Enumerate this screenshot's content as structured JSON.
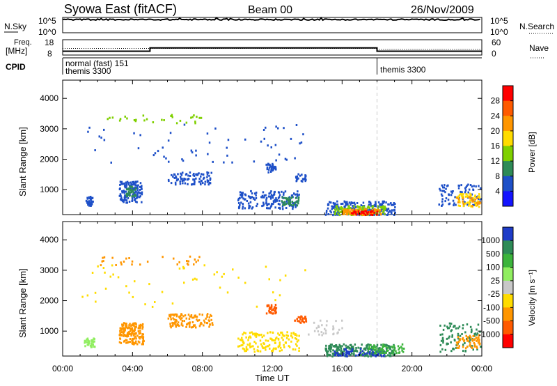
{
  "header": {
    "station": "Syowa East (fitACF)",
    "beam": "Beam 00",
    "date": "26/Nov/2009"
  },
  "top_panels": {
    "nsky_label": "N.Sky",
    "nsky_ticks": [
      "10^5",
      "10^0"
    ],
    "nsearch_label": "N.Search",
    "nsearch_ticks": [
      "10^5",
      "10^0"
    ],
    "freq_label_line1": "Freq.",
    "freq_label_line2": "[MHz]",
    "freq_ticks": [
      "18",
      "8"
    ],
    "nave_label": "Nave",
    "nave_ticks": [
      "60",
      "0"
    ],
    "cpid_label": "CPID",
    "cpid_segments": [
      {
        "line1": "normal (fast) 151",
        "line2": "themis 3300",
        "start_hour": 0
      },
      {
        "line1": "themis 3300",
        "line2": "",
        "start_hour": 18
      }
    ],
    "freq_steps": [
      {
        "from": 0,
        "to": 5,
        "mhz": 10.5
      },
      {
        "from": 5,
        "to": 18,
        "mhz": 12.7
      },
      {
        "from": 18,
        "to": 24,
        "mhz": 10.5
      }
    ],
    "nave_level": 22,
    "nsky_level": 4.3
  },
  "chart_data": [
    {
      "type": "heatmap",
      "panel": "power",
      "ylabel": "Slant Range [km]",
      "xlabel": "Time UT",
      "x_ticks": [
        "00:00",
        "04:00",
        "08:00",
        "12:00",
        "16:00",
        "20:00",
        "00:00"
      ],
      "y_ticks": [
        1000,
        2000,
        3000,
        4000
      ],
      "xlim": [
        0,
        24
      ],
      "ylim": [
        180,
        4600
      ],
      "colorbar_label": "Power [dB]",
      "colorbar_ticks": [
        "28",
        "24",
        "20",
        "16",
        "12",
        "8",
        "4"
      ],
      "colorbar_colors": [
        "#ff0000",
        "#ff5a00",
        "#ff9600",
        "#ffdc00",
        "#7fd000",
        "#2e8b57",
        "#1e50c8",
        "#1414ff"
      ],
      "marker_hour": 18,
      "blobs": [
        {
          "t": [
            1.3,
            1.7
          ],
          "r": [
            500,
            800
          ],
          "c": "#1e50c8",
          "n": 40
        },
        {
          "t": [
            3.2,
            4.5
          ],
          "r": [
            600,
            1300
          ],
          "c": "#1e50c8",
          "n": 140
        },
        {
          "t": [
            3.6,
            4.2
          ],
          "r": [
            800,
            1150
          ],
          "c": "#2e8b57",
          "n": 30
        },
        {
          "t": [
            6.0,
            8.5
          ],
          "r": [
            1200,
            1600
          ],
          "c": "#1e50c8",
          "n": 90
        },
        {
          "t": [
            2.0,
            8.0
          ],
          "r": [
            3200,
            3500
          ],
          "c": "#7fd000",
          "n": 30
        },
        {
          "t": [
            10.0,
            13.5
          ],
          "r": [
            400,
            1000
          ],
          "c": "#1e50c8",
          "n": 160
        },
        {
          "t": [
            11.6,
            12.2
          ],
          "r": [
            1600,
            1900
          ],
          "c": "#1e50c8",
          "n": 30
        },
        {
          "t": [
            12.5,
            13.5
          ],
          "r": [
            500,
            800
          ],
          "c": "#2e8b57",
          "n": 40
        },
        {
          "t": [
            13.3,
            13.9
          ],
          "r": [
            1300,
            1550
          ],
          "c": "#1e50c8",
          "n": 25
        },
        {
          "t": [
            15.0,
            19.0
          ],
          "r": [
            200,
            650
          ],
          "c": "#1e50c8",
          "n": 220
        },
        {
          "t": [
            15.5,
            18.5
          ],
          "r": [
            200,
            500
          ],
          "c": "#7fd000",
          "n": 120
        },
        {
          "t": [
            16.0,
            18.2
          ],
          "r": [
            200,
            400
          ],
          "c": "#ff9600",
          "n": 90
        },
        {
          "t": [
            16.5,
            18.0
          ],
          "r": [
            200,
            330
          ],
          "c": "#ff0000",
          "n": 40
        },
        {
          "t": [
            21.5,
            24.0
          ],
          "r": [
            500,
            1200
          ],
          "c": "#1e50c8",
          "n": 90
        },
        {
          "t": [
            22.5,
            24.0
          ],
          "r": [
            450,
            900
          ],
          "c": "#ffdc00",
          "n": 60
        },
        {
          "t": [
            22.5,
            24.0
          ],
          "r": [
            500,
            800
          ],
          "c": "#ff9600",
          "n": 30
        },
        {
          "t": [
            1.0,
            14.0
          ],
          "r": [
            1800,
            3200
          ],
          "c": "#1e50c8",
          "n": 60
        }
      ]
    },
    {
      "type": "heatmap",
      "panel": "velocity",
      "ylabel": "Slant Range [km]",
      "xlabel": "Time UT",
      "x_ticks": [
        "00:00",
        "04:00",
        "08:00",
        "12:00",
        "16:00",
        "20:00",
        "00:00"
      ],
      "y_ticks": [
        1000,
        2000,
        3000,
        4000
      ],
      "xlim": [
        0,
        24
      ],
      "ylim": [
        180,
        4600
      ],
      "colorbar_label": "Velocity [m s⁻¹]",
      "colorbar_ticks": [
        "1000",
        "500",
        "100",
        "25",
        "-25",
        "-100",
        "-500",
        "-1000"
      ],
      "colorbar_colors": [
        "#1e3cc8",
        "#2e8b57",
        "#3cb43c",
        "#90ee60",
        "#c8c8c8",
        "#ffdc00",
        "#ff9600",
        "#ff5a00",
        "#ff0000"
      ],
      "marker_hour": 18,
      "blobs": [
        {
          "t": [
            1.2,
            1.8
          ],
          "r": [
            500,
            800
          ],
          "c": "#90ee60",
          "n": 40
        },
        {
          "t": [
            3.2,
            4.6
          ],
          "r": [
            600,
            1300
          ],
          "c": "#ff9600",
          "n": 160
        },
        {
          "t": [
            6.0,
            8.6
          ],
          "r": [
            1150,
            1600
          ],
          "c": "#ff9600",
          "n": 110
        },
        {
          "t": [
            10.0,
            13.5
          ],
          "r": [
            350,
            1000
          ],
          "c": "#ffdc00",
          "n": 150
        },
        {
          "t": [
            11.6,
            12.2
          ],
          "r": [
            1600,
            1900
          ],
          "c": "#ff5a00",
          "n": 35
        },
        {
          "t": [
            13.2,
            13.9
          ],
          "r": [
            1300,
            1550
          ],
          "c": "#ff5a00",
          "n": 25
        },
        {
          "t": [
            15.0,
            19.0
          ],
          "r": [
            200,
            600
          ],
          "c": "#2e8b57",
          "n": 220
        },
        {
          "t": [
            15.5,
            18.5
          ],
          "r": [
            200,
            450
          ],
          "c": "#1e3cc8",
          "n": 70
        },
        {
          "t": [
            17.5,
            19.5
          ],
          "r": [
            300,
            600
          ],
          "c": "#3cb43c",
          "n": 60
        },
        {
          "t": [
            21.5,
            24.0
          ],
          "r": [
            350,
            1300
          ],
          "c": "#2e8b57",
          "n": 90
        },
        {
          "t": [
            22.5,
            24.0
          ],
          "r": [
            450,
            900
          ],
          "c": "#ff9600",
          "n": 60
        },
        {
          "t": [
            2.0,
            8.0
          ],
          "r": [
            3200,
            3500
          ],
          "c": "#ff9600",
          "n": 30
        },
        {
          "t": [
            1.0,
            14.0
          ],
          "r": [
            1800,
            3200
          ],
          "c": "#ffdc00",
          "n": 50
        },
        {
          "t": [
            14.0,
            16.0
          ],
          "r": [
            900,
            1400
          ],
          "c": "#c8c8c8",
          "n": 30
        }
      ]
    }
  ]
}
